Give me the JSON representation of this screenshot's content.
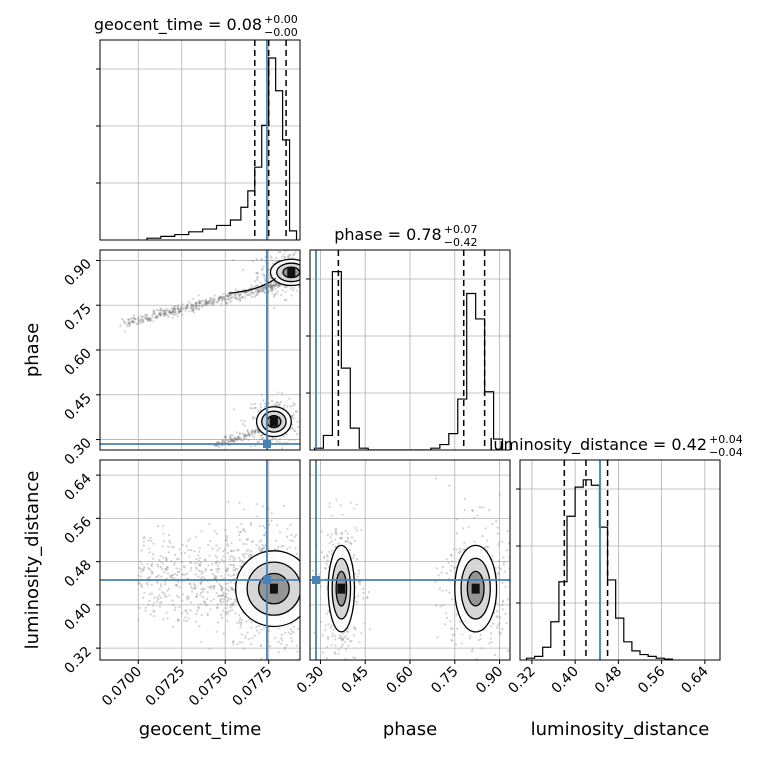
{
  "colors": {
    "truth": "#4682b4",
    "line": "#000000",
    "grid": "#b0b0b0",
    "scatter": "#7f7f7f"
  },
  "chart_data": {
    "type": "corner",
    "parameters": [
      "geocent_time",
      "phase",
      "luminosity_distance"
    ],
    "axis_labels": {
      "geocent_time": "geocent_time",
      "phase": "phase",
      "luminosity_distance": "luminosity_distance"
    },
    "titles": [
      {
        "param": "geocent_time",
        "prefix": "geocent_time = ",
        "value": "0.08",
        "plus": "+0.00",
        "minus": "−0.00"
      },
      {
        "param": "phase",
        "prefix": "phase = ",
        "value": "0.78",
        "plus": "+0.07",
        "minus": "−0.42"
      },
      {
        "param": "luminosity_distance",
        "prefix": "luminosity_distance = ",
        "value": "0.42",
        "plus": "+0.04",
        "minus": "−0.04"
      }
    ],
    "ranges": {
      "geocent_time": [
        0.0678,
        0.0793
      ],
      "phase": [
        0.265,
        0.935
      ],
      "luminosity_distance": [
        0.298,
        0.668
      ]
    },
    "ticks": {
      "geocent_time": {
        "values": [
          0.07,
          0.0725,
          0.075,
          0.0775
        ],
        "labels": [
          "0.0700",
          "0.0725",
          "0.0750",
          "0.0775"
        ]
      },
      "phase": {
        "values": [
          0.3,
          0.45,
          0.6,
          0.75,
          0.9
        ],
        "labels": [
          "0.30",
          "0.45",
          "0.60",
          "0.75",
          "0.90"
        ]
      },
      "luminosity_distance": {
        "values": [
          0.32,
          0.4,
          0.48,
          0.56,
          0.64
        ],
        "labels": [
          "0.32",
          "0.40",
          "0.48",
          "0.56",
          "0.64"
        ]
      }
    },
    "truths": {
      "geocent_time": 0.0774,
      "phase": 0.285,
      "luminosity_distance": 0.446
    },
    "quantiles": {
      "geocent_time": [
        0.0767,
        0.0775,
        0.0785
      ],
      "phase": [
        0.36,
        0.78,
        0.85
      ],
      "luminosity_distance": [
        0.38,
        0.42,
        0.46
      ]
    },
    "histograms": {
      "geocent_time": {
        "edges": [
          0.0705,
          0.0713,
          0.0721,
          0.0729,
          0.0737,
          0.0745,
          0.0753,
          0.0759,
          0.0763,
          0.0767,
          0.0771,
          0.0775,
          0.0779,
          0.0783,
          0.0787,
          0.0791
        ],
        "counts": [
          0.01,
          0.02,
          0.03,
          0.045,
          0.06,
          0.08,
          0.11,
          0.18,
          0.27,
          0.4,
          0.63,
          1.0,
          0.82,
          0.55,
          0.05
        ]
      },
      "phase": {
        "edges": [
          0.28,
          0.31,
          0.34,
          0.37,
          0.4,
          0.43,
          0.46,
          0.64,
          0.67,
          0.7,
          0.73,
          0.76,
          0.79,
          0.82,
          0.85,
          0.88,
          0.91
        ],
        "counts": [
          0.01,
          0.08,
          0.98,
          0.45,
          0.12,
          0.01,
          0,
          0,
          0.01,
          0.03,
          0.09,
          0.28,
          0.86,
          0.72,
          0.32,
          0.06
        ]
      },
      "luminosity_distance": {
        "edges": [
          0.31,
          0.325,
          0.34,
          0.355,
          0.37,
          0.385,
          0.4,
          0.415,
          0.43,
          0.445,
          0.46,
          0.475,
          0.49,
          0.505,
          0.52,
          0.535,
          0.55,
          0.565,
          0.58
        ],
        "counts": [
          0.01,
          0.02,
          0.07,
          0.21,
          0.43,
          0.79,
          0.95,
          0.99,
          0.96,
          0.73,
          0.44,
          0.23,
          0.1,
          0.05,
          0.03,
          0.02,
          0.01,
          0.005
        ]
      }
    },
    "clusters": {
      "phase_vs_geocent_time": [
        {
          "cx": 0.0788,
          "cy": 0.86,
          "sx": 0.0006,
          "sy": 0.022,
          "weight": 0.55
        },
        {
          "cx": 0.0778,
          "cy": 0.36,
          "sx": 0.0005,
          "sy": 0.025,
          "weight": 0.35
        }
      ],
      "luminosity_distance_vs_geocent_time": [
        {
          "cx": 0.0778,
          "cy": 0.43,
          "sx": 0.0011,
          "sy": 0.035,
          "weight": 1.0
        }
      ],
      "luminosity_distance_vs_phase": [
        {
          "cx": 0.37,
          "cy": 0.43,
          "sx": 0.022,
          "sy": 0.04,
          "weight": 0.48
        },
        {
          "cx": 0.82,
          "cy": 0.43,
          "sx": 0.035,
          "sy": 0.04,
          "weight": 0.52
        }
      ]
    }
  }
}
